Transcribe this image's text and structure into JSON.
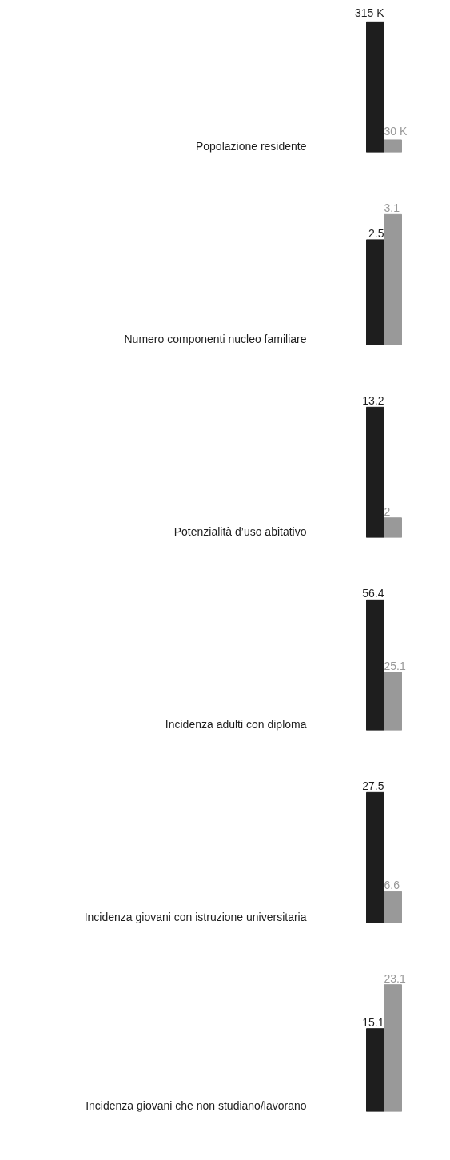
{
  "chart_data": [
    {
      "type": "bar",
      "xlabel": "Popolazione residente",
      "categories": [
        null,
        null
      ],
      "values": [
        315000,
        30000
      ],
      "colors": [
        "#1e1e1e",
        "#999999"
      ],
      "value_labels": [
        "315 K",
        "30 K"
      ]
    },
    {
      "type": "bar",
      "xlabel": "Numero componenti nucleo familiare",
      "categories": [
        null,
        null
      ],
      "values": [
        2.5,
        3.1
      ],
      "colors": [
        "#1e1e1e",
        "#999999"
      ],
      "value_labels": [
        "2.5",
        "3.1"
      ]
    },
    {
      "type": "bar",
      "xlabel": "Potenzialità d’uso abitativo",
      "categories": [
        null,
        null
      ],
      "values": [
        13.2,
        2
      ],
      "colors": [
        "#1e1e1e",
        "#999999"
      ],
      "value_labels": [
        "13.2",
        "2"
      ]
    },
    {
      "type": "bar",
      "xlabel": "Incidenza adulti con diploma",
      "categories": [
        null,
        null
      ],
      "values": [
        56.4,
        25.1
      ],
      "colors": [
        "#1e1e1e",
        "#999999"
      ],
      "value_labels": [
        "56.4",
        "25.1"
      ]
    },
    {
      "type": "bar",
      "xlabel": "Incidenza giovani con istruzione universitaria",
      "categories": [
        null,
        null
      ],
      "values": [
        27.5,
        6.6
      ],
      "colors": [
        "#1e1e1e",
        "#999999"
      ],
      "value_labels": [
        "27.5",
        "6.6"
      ]
    },
    {
      "type": "bar",
      "xlabel": "Incidenza giovani che non studiano/lavorano",
      "categories": [
        null,
        null
      ],
      "values": [
        15.1,
        23.1
      ],
      "colors": [
        "#1e1e1e",
        "#999999"
      ],
      "value_labels": [
        "15.1",
        "23.1"
      ]
    }
  ]
}
